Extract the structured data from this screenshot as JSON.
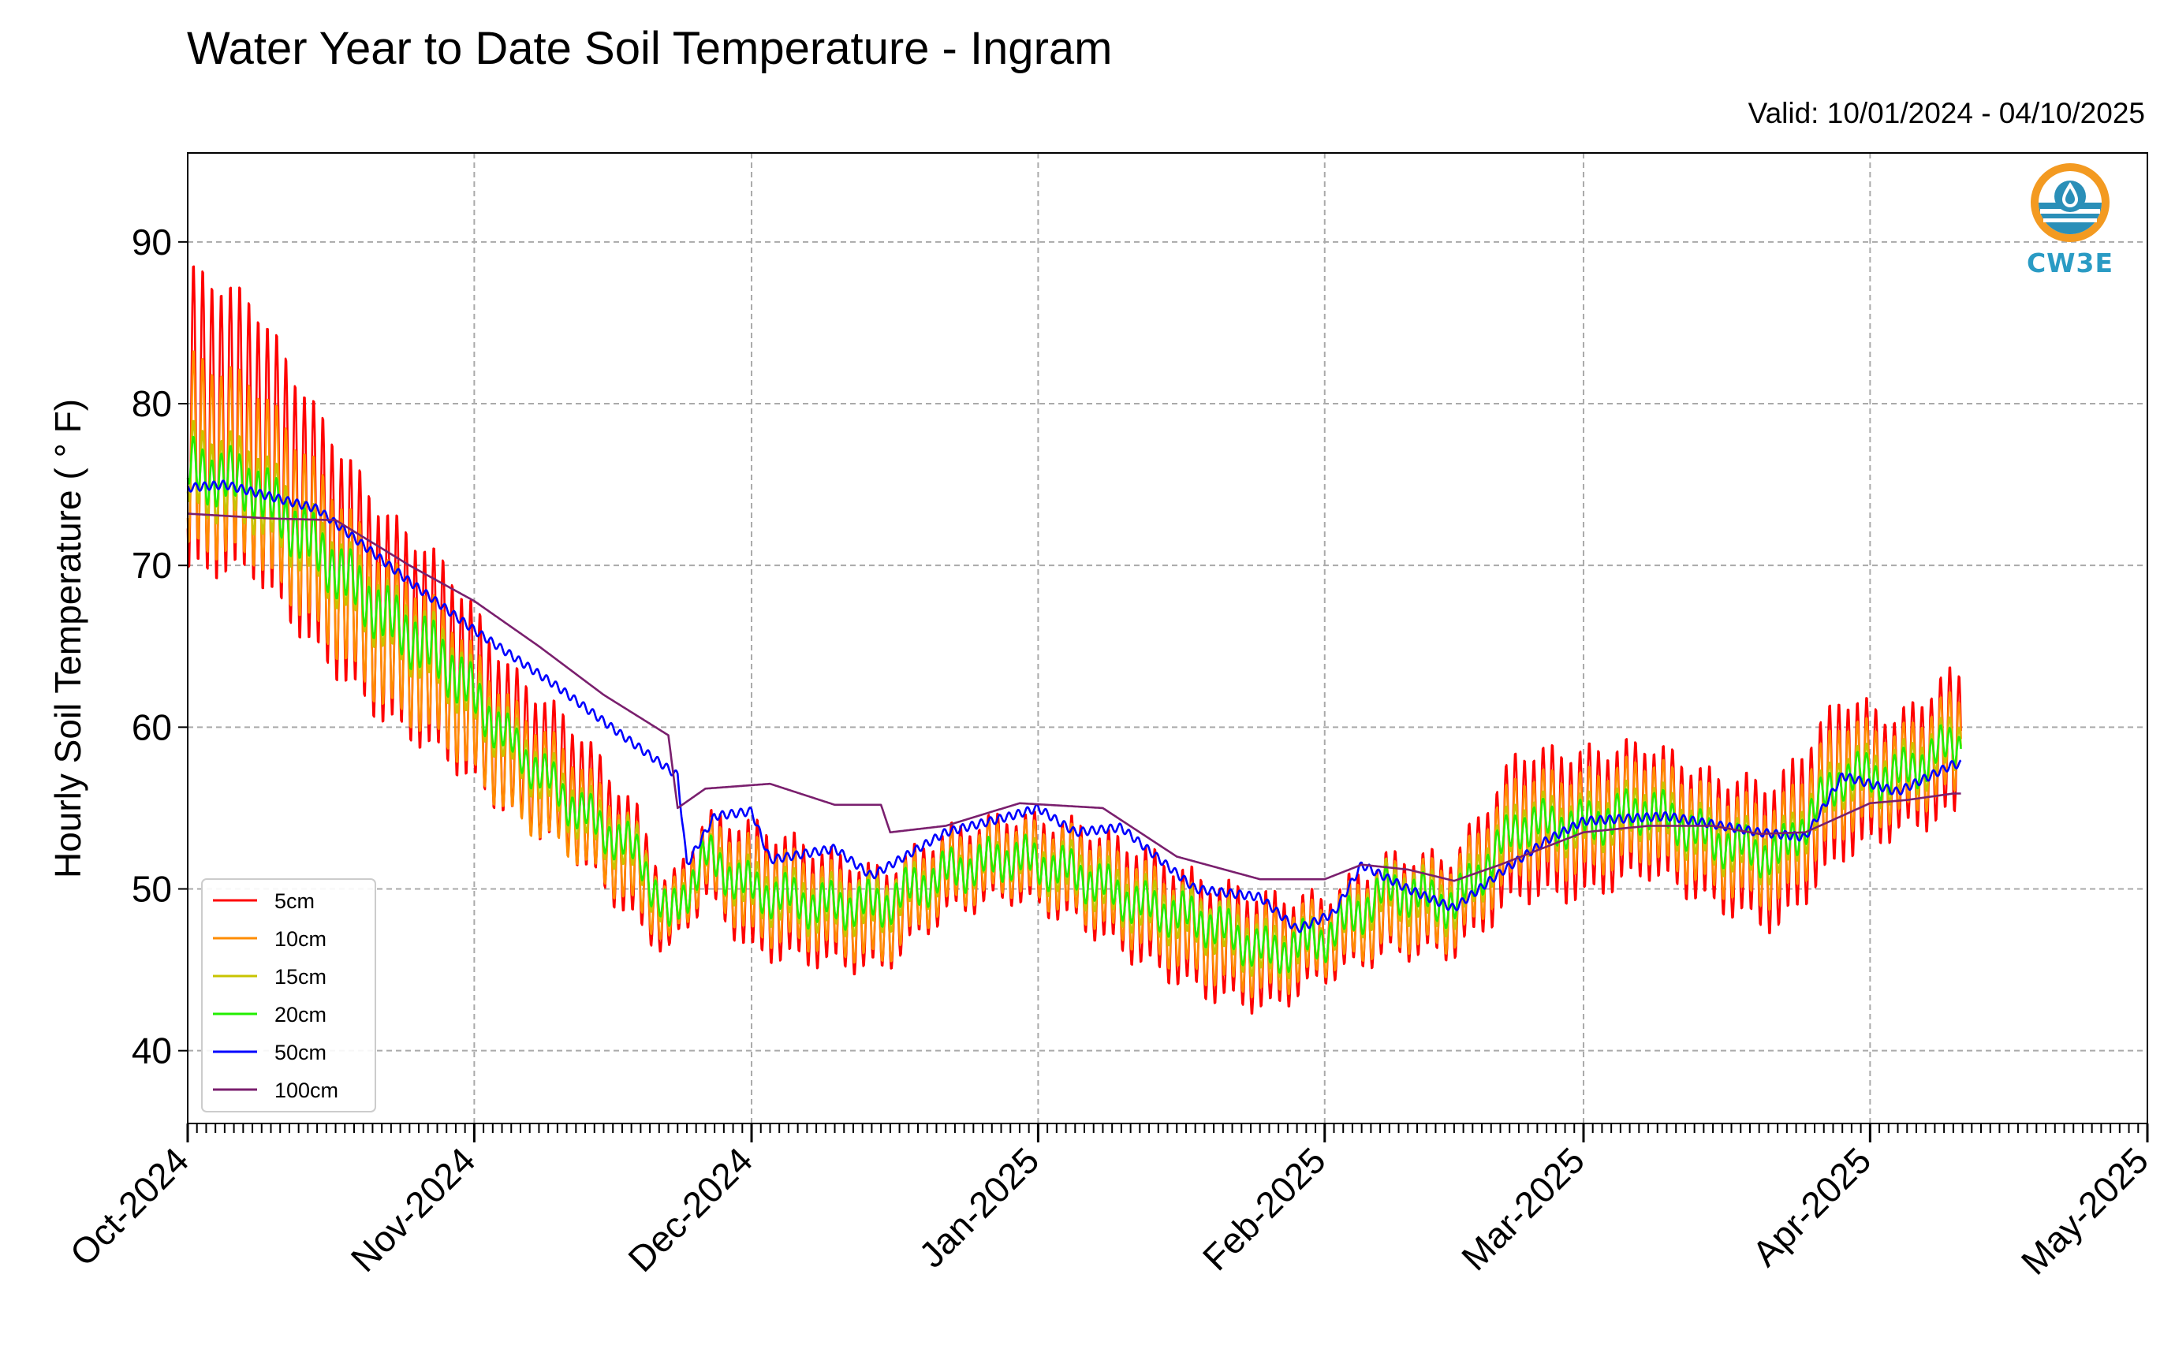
{
  "title": "Water Year to Date Soil Temperature - Ingram",
  "valid": "Valid: 10/01/2024 - 04/10/2025",
  "logo_text": "CW3E",
  "chart_data": {
    "type": "line",
    "title": "Water Year to Date Soil Temperature - Ingram",
    "ylabel": "Hourly Soil Temperature ( ° F)",
    "xlabel": "",
    "ylim": [
      35.5,
      95.5
    ],
    "yticks": [
      40,
      50,
      60,
      70,
      80,
      90
    ],
    "xlim": [
      "2024-10-01",
      "2025-05-01"
    ],
    "xticks": [
      {
        "date": "2024-10-01",
        "label": "Oct-2024"
      },
      {
        "date": "2024-11-01",
        "label": "Nov-2024"
      },
      {
        "date": "2024-12-01",
        "label": "Dec-2024"
      },
      {
        "date": "2025-01-01",
        "label": "Jan-2025"
      },
      {
        "date": "2025-02-01",
        "label": "Feb-2025"
      },
      {
        "date": "2025-03-01",
        "label": "Mar-2025"
      },
      {
        "date": "2025-04-01",
        "label": "Apr-2025"
      },
      {
        "date": "2025-05-01",
        "label": "May-2025"
      }
    ],
    "grid": true,
    "legend_position": "lower-left",
    "series": [
      {
        "name": "5cm",
        "color": "#ff0000",
        "dates": [
          "2024-10-01",
          "2024-10-08",
          "2024-10-15",
          "2024-10-22",
          "2024-10-29",
          "2024-11-05",
          "2024-11-12",
          "2024-11-19",
          "2024-11-22",
          "2024-11-26",
          "2024-12-01",
          "2024-12-08",
          "2024-12-15",
          "2024-12-22",
          "2024-12-29",
          "2025-01-05",
          "2025-01-12",
          "2025-01-19",
          "2025-01-26",
          "2025-02-01",
          "2025-02-08",
          "2025-02-15",
          "2025-02-22",
          "2025-03-01",
          "2025-03-08",
          "2025-03-15",
          "2025-03-22",
          "2025-03-29",
          "2025-04-04",
          "2025-04-10"
        ],
        "mean": [
          79,
          78,
          72,
          67,
          64,
          59,
          56,
          51,
          48,
          52,
          50,
          49,
          48,
          51,
          52,
          51,
          49,
          47,
          46,
          47,
          49,
          49,
          54,
          54,
          55,
          53,
          52,
          57,
          57,
          59
        ],
        "range": [
          19,
          17,
          15,
          13,
          12,
          9,
          8,
          7,
          4,
          5,
          8,
          7,
          6,
          5,
          5,
          6,
          7,
          7,
          7,
          5,
          6,
          6,
          9,
          9,
          8,
          8,
          9,
          10,
          7,
          9
        ]
      },
      {
        "name": "10cm",
        "color": "#ff8c00",
        "dates": [
          "2024-10-01",
          "2024-10-08",
          "2024-10-15",
          "2024-10-22",
          "2024-10-29",
          "2024-11-05",
          "2024-11-12",
          "2024-11-19",
          "2024-11-22",
          "2024-11-26",
          "2024-12-01",
          "2024-12-08",
          "2024-12-15",
          "2024-12-22",
          "2024-12-29",
          "2025-01-05",
          "2025-01-12",
          "2025-01-19",
          "2025-01-26",
          "2025-02-01",
          "2025-02-08",
          "2025-02-15",
          "2025-02-22",
          "2025-03-01",
          "2025-03-08",
          "2025-03-15",
          "2025-03-22",
          "2025-03-29",
          "2025-04-04",
          "2025-04-10"
        ],
        "mean": [
          77,
          76,
          71,
          66,
          63,
          58,
          55,
          51,
          48,
          52,
          50,
          49,
          48,
          51,
          52,
          51,
          49,
          47,
          46,
          47,
          49,
          49,
          54,
          54,
          55,
          53,
          52,
          57,
          57,
          59
        ],
        "range": [
          12,
          11,
          10,
          9,
          8,
          7,
          6,
          5,
          3,
          4,
          6,
          5,
          5,
          4,
          4,
          5,
          5,
          5,
          5,
          4,
          5,
          5,
          6,
          6,
          6,
          6,
          6,
          7,
          5,
          6
        ]
      },
      {
        "name": "15cm",
        "color": "#c8c400",
        "dates": [
          "2024-10-01",
          "2024-10-08",
          "2024-10-15",
          "2024-10-22",
          "2024-10-29",
          "2024-11-05",
          "2024-11-12",
          "2024-11-19",
          "2024-11-22",
          "2024-11-26",
          "2024-12-01",
          "2024-12-08",
          "2024-12-15",
          "2024-12-22",
          "2024-12-29",
          "2025-01-05",
          "2025-01-12",
          "2025-01-19",
          "2025-01-26",
          "2025-02-01",
          "2025-02-08",
          "2025-02-15",
          "2025-02-22",
          "2025-03-01",
          "2025-03-08",
          "2025-03-15",
          "2025-03-22",
          "2025-03-29",
          "2025-04-04",
          "2025-04-10"
        ],
        "mean": [
          76,
          75,
          71,
          67,
          64,
          59,
          55,
          52,
          48,
          52,
          50,
          49,
          49,
          51,
          52,
          51,
          49,
          48,
          46,
          47,
          50,
          49,
          54,
          54,
          55,
          53,
          52,
          57,
          57,
          59
        ],
        "range": [
          5,
          5,
          4,
          4,
          4,
          3,
          3,
          3,
          2,
          2,
          3,
          3,
          3,
          2,
          2,
          3,
          3,
          3,
          3,
          2,
          3,
          3,
          3,
          3,
          3,
          3,
          3,
          3,
          3,
          3
        ]
      },
      {
        "name": "20cm",
        "color": "#22ee00",
        "dates": [
          "2024-10-01",
          "2024-10-08",
          "2024-10-15",
          "2024-10-22",
          "2024-10-29",
          "2024-11-05",
          "2024-11-12",
          "2024-11-19",
          "2024-11-22",
          "2024-11-26",
          "2024-12-01",
          "2024-12-08",
          "2024-12-15",
          "2024-12-22",
          "2024-12-29",
          "2025-01-05",
          "2025-01-12",
          "2025-01-19",
          "2025-01-26",
          "2025-02-01",
          "2025-02-08",
          "2025-02-15",
          "2025-02-22",
          "2025-03-01",
          "2025-03-08",
          "2025-03-15",
          "2025-03-22",
          "2025-03-29",
          "2025-04-04",
          "2025-04-10"
        ],
        "mean": [
          76,
          75,
          71,
          67,
          64,
          59,
          55,
          52,
          48,
          52,
          50,
          49,
          49,
          51,
          52,
          51,
          49,
          48,
          46,
          47,
          50,
          49,
          54,
          54,
          55,
          53,
          52,
          57,
          57,
          59
        ],
        "range": [
          3,
          3,
          3,
          3,
          3,
          2,
          2,
          2,
          2,
          2,
          2,
          2,
          2,
          2,
          2,
          2,
          2,
          2,
          2,
          2,
          2,
          2,
          2,
          2,
          2,
          2,
          2,
          2,
          2,
          2
        ]
      },
      {
        "name": "50cm",
        "color": "#0000ff",
        "dates": [
          "2024-10-01",
          "2024-10-05",
          "2024-10-15",
          "2024-10-25",
          "2024-11-01",
          "2024-11-10",
          "2024-11-17",
          "2024-11-23",
          "2024-11-24",
          "2024-11-27",
          "2024-12-01",
          "2024-12-03",
          "2024-12-10",
          "2024-12-14",
          "2024-12-22",
          "2024-12-29",
          "2025-01-01",
          "2025-01-05",
          "2025-01-10",
          "2025-01-18",
          "2025-01-25",
          "2025-01-29",
          "2025-02-02",
          "2025-02-05",
          "2025-02-10",
          "2025-02-15",
          "2025-02-20",
          "2025-02-25",
          "2025-03-01",
          "2025-03-10",
          "2025-03-15",
          "2025-03-20",
          "2025-03-25",
          "2025-03-29",
          "2025-04-04",
          "2025-04-10"
        ],
        "values": [
          74.8,
          75.0,
          73.5,
          69.0,
          66.0,
          62.5,
          59.5,
          57.0,
          51.5,
          54.5,
          54.8,
          51.8,
          52.5,
          50.8,
          53.5,
          54.5,
          55.0,
          53.5,
          53.8,
          50.0,
          49.5,
          47.5,
          48.5,
          51.5,
          50.0,
          48.8,
          51.0,
          53.0,
          54.2,
          54.5,
          54.0,
          53.5,
          53.2,
          57.0,
          56.0,
          57.7
        ]
      },
      {
        "name": "100cm",
        "color": "#7a1f6e",
        "dates": [
          "2024-10-01",
          "2024-10-10",
          "2024-10-17",
          "2024-10-25",
          "2024-11-01",
          "2024-11-08",
          "2024-11-15",
          "2024-11-22",
          "2024-11-23",
          "2024-11-26",
          "2024-12-03",
          "2024-12-10",
          "2024-12-15",
          "2024-12-16",
          "2024-12-22",
          "2024-12-30",
          "2025-01-08",
          "2025-01-16",
          "2025-01-25",
          "2025-02-01",
          "2025-02-05",
          "2025-02-10",
          "2025-02-15",
          "2025-02-20",
          "2025-03-01",
          "2025-03-08",
          "2025-03-15",
          "2025-03-20",
          "2025-03-25",
          "2025-04-01",
          "2025-04-05",
          "2025-04-10"
        ],
        "values": [
          73.2,
          72.9,
          72.8,
          70.0,
          67.8,
          65.0,
          62.0,
          59.5,
          55.0,
          56.2,
          56.5,
          55.2,
          55.2,
          53.5,
          53.9,
          55.3,
          55.0,
          52.0,
          50.6,
          50.6,
          51.5,
          51.2,
          50.5,
          51.5,
          53.5,
          53.9,
          53.9,
          53.4,
          53.5,
          55.3,
          55.5,
          55.9
        ]
      }
    ]
  }
}
